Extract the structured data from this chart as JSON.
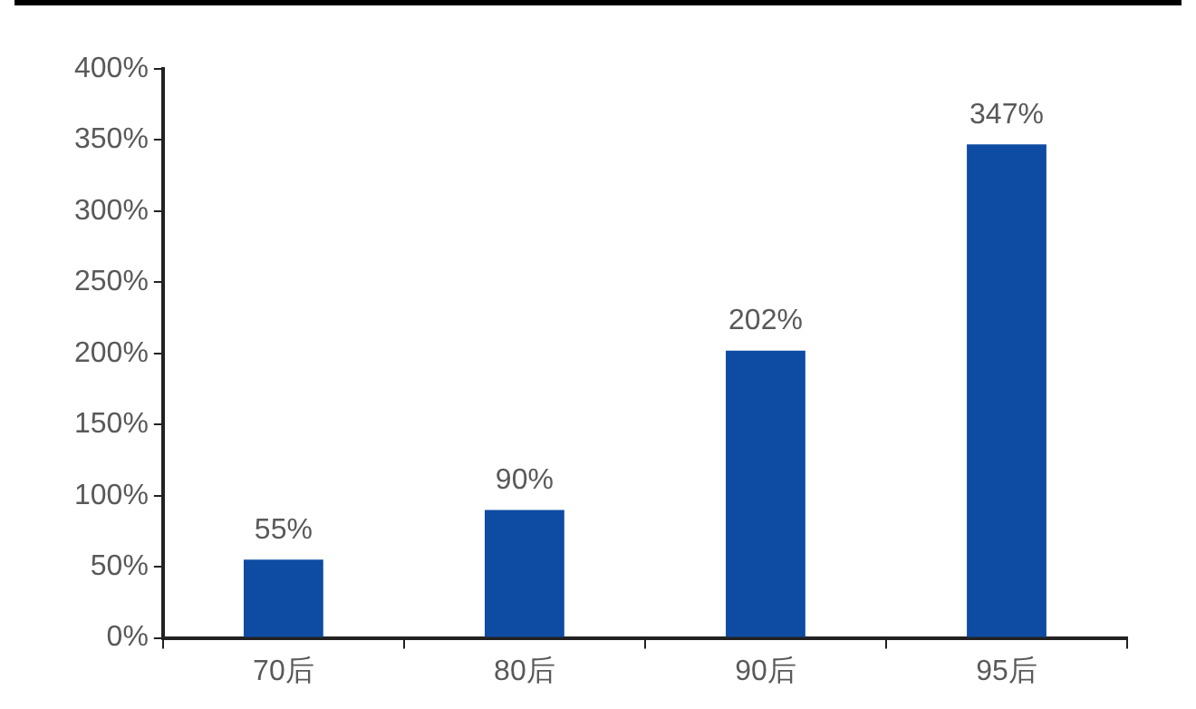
{
  "chart_data": {
    "type": "bar",
    "categories": [
      "70后",
      "80后",
      "90后",
      "95后"
    ],
    "values": [
      55,
      90,
      202,
      347
    ],
    "color": "#0e4ba3",
    "value_labels": [
      "55%",
      "90%",
      "202%",
      "347%"
    ],
    "ylim": [
      0,
      400
    ],
    "yticks": [
      {
        "value": 0,
        "label": "0%"
      },
      {
        "value": 50,
        "label": "50%"
      },
      {
        "value": 100,
        "label": "100%"
      },
      {
        "value": 150,
        "label": "150%"
      },
      {
        "value": 200,
        "label": "200%"
      },
      {
        "value": 250,
        "label": "250%"
      },
      {
        "value": 300,
        "label": "300%"
      },
      {
        "value": 350,
        "label": "350%"
      },
      {
        "value": 400,
        "label": "400%"
      }
    ],
    "grid": false,
    "legend": false
  }
}
